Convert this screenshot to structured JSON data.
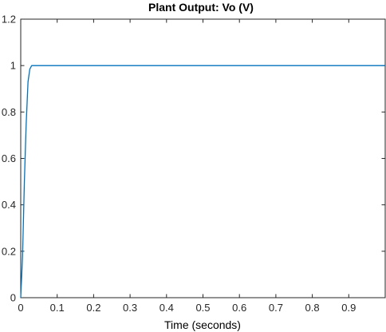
{
  "chart_data": {
    "type": "line",
    "title": "Plant Output:  Vo (V)",
    "xlabel": "Time (seconds)",
    "ylabel": "",
    "xlim": [
      0,
      1
    ],
    "ylim": [
      0,
      1.2
    ],
    "x_ticks": [
      "0",
      "0.1",
      "0.2",
      "0.3",
      "0.4",
      "0.5",
      "0.6",
      "0.7",
      "0.8",
      "0.9"
    ],
    "y_ticks": [
      "0",
      "0.2",
      "0.4",
      "0.6",
      "0.8",
      "1",
      "1.2"
    ],
    "grid": false,
    "legend": "none",
    "series": [
      {
        "color": "#0072bd",
        "x": [
          0,
          0.005,
          0.01,
          0.015,
          0.02,
          0.025,
          0.03,
          0.05,
          0.1,
          0.3,
          0.5,
          0.7,
          0.9,
          1.0
        ],
        "y": [
          0,
          0.18,
          0.5,
          0.75,
          0.93,
          0.985,
          1.0,
          1.0,
          1.0,
          1.0,
          1.0,
          1.0,
          1.0,
          1.0
        ]
      }
    ]
  }
}
